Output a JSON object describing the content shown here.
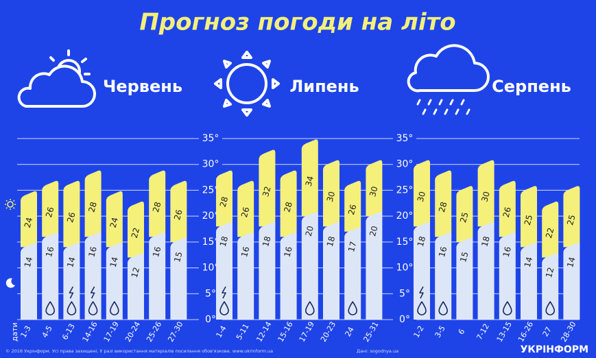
{
  "title": "Прогноз погоди на літо",
  "axis_note": "дати",
  "footer": {
    "copyright": "© 2016 Укрінформ. Усі права захищені. У разі використання матеріалів посилання обов'язкове. www.ukrinform.ua",
    "source": "Дані: sogodnya.ua",
    "brand": "УКРІНФОРМ"
  },
  "chart_data": [
    {
      "type": "range-bar",
      "title": "Червень",
      "categories": [
        "1-3",
        "4-5",
        "6-13",
        "14-16",
        "17-19",
        "20-24",
        "25-26",
        "27-30"
      ],
      "series": [
        {
          "color": "#dde6f6",
          "values": [
            14,
            16,
            14,
            16,
            14,
            12,
            16,
            15
          ]
        },
        {
          "color": "#f4f07a",
          "values": [
            24,
            26,
            26,
            28,
            24,
            22,
            28,
            26
          ]
        }
      ],
      "ylim": [
        0,
        35
      ],
      "yticks": [
        {
          "value": 0,
          "label": "0°"
        },
        {
          "value": 5,
          "label": "5°"
        },
        {
          "value": 10,
          "label": "10°"
        },
        {
          "value": 15,
          "label": "15°"
        },
        {
          "value": 20,
          "label": "20°"
        },
        {
          "value": 25,
          "label": "25°"
        },
        {
          "value": 30,
          "label": "30°"
        },
        {
          "value": 35,
          "label": "35°"
        }
      ],
      "grid": true
    },
    {
      "type": "range-bar",
      "title": "Липень",
      "categories": [
        "1-4",
        "5-11",
        "12-14",
        "15-16",
        "17-19",
        "20-23",
        "24",
        "25-31"
      ],
      "series": [
        {
          "color": "#dde6f6",
          "values": [
            18,
            16,
            18,
            16,
            20,
            18,
            17,
            20
          ]
        },
        {
          "color": "#f4f07a",
          "values": [
            28,
            26,
            32,
            28,
            34,
            30,
            26,
            30
          ]
        }
      ],
      "ylim": [
        0,
        35
      ],
      "yticks": [
        {
          "value": 0,
          "label": "0°"
        },
        {
          "value": 5,
          "label": "5°"
        },
        {
          "value": 10,
          "label": "10°"
        },
        {
          "value": 15,
          "label": "15°"
        },
        {
          "value": 20,
          "label": "20°"
        },
        {
          "value": 25,
          "label": "25°"
        },
        {
          "value": 30,
          "label": "30°"
        },
        {
          "value": 35,
          "label": "35°"
        }
      ],
      "grid": true
    },
    {
      "type": "range-bar",
      "title": "Серпень",
      "categories": [
        "1-2",
        "3-5",
        "6",
        "7-12",
        "13-15",
        "16-26",
        "27",
        "28-30"
      ],
      "series": [
        {
          "color": "#dde6f6",
          "values": [
            18,
            16,
            15,
            18,
            16,
            14,
            12,
            14
          ]
        },
        {
          "color": "#f4f07a",
          "values": [
            30,
            28,
            25,
            30,
            26,
            25,
            22,
            25
          ]
        }
      ],
      "ylim": [
        0,
        35
      ],
      "yticks": [
        {
          "value": 0,
          "label": "0°"
        },
        {
          "value": 5,
          "label": "5°"
        },
        {
          "value": 10,
          "label": "10°"
        },
        {
          "value": 15,
          "label": "15°"
        },
        {
          "value": 20,
          "label": "20°"
        },
        {
          "value": 25,
          "label": "25°"
        },
        {
          "value": 30,
          "label": "30°"
        },
        {
          "value": 35,
          "label": "35°"
        }
      ],
      "grid": true
    }
  ]
}
